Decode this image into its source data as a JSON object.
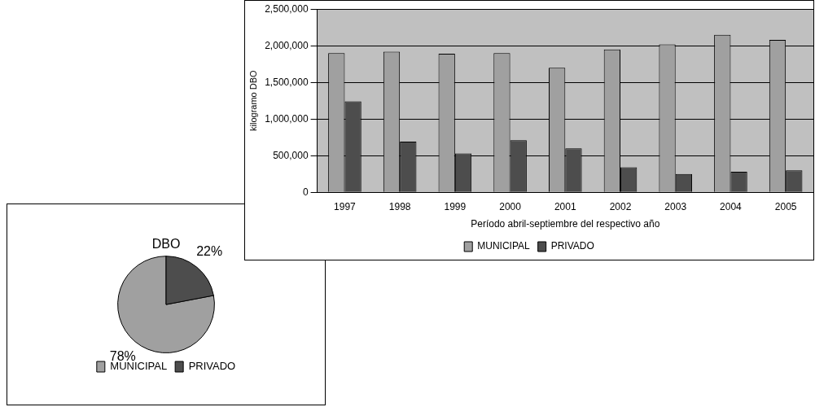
{
  "chart_data": [
    {
      "type": "bar",
      "xlabel": "Período abril-septiembre del respectivo año",
      "ylabel": "kilogramo DBO",
      "categories": [
        "1997",
        "1998",
        "1999",
        "2000",
        "2001",
        "2002",
        "2003",
        "2004",
        "2005"
      ],
      "series": [
        {
          "name": "MUNICIPAL",
          "color": "#a0a0a0",
          "values": [
            1900000,
            1920000,
            1890000,
            1900000,
            1700000,
            1950000,
            2020000,
            2150000,
            2080000
          ]
        },
        {
          "name": "PRIVADO",
          "color": "#4d4d4d",
          "values": [
            1240000,
            690000,
            530000,
            710000,
            600000,
            340000,
            250000,
            280000,
            300000
          ]
        }
      ],
      "ylim": [
        0,
        2500000
      ],
      "yticks": [
        {
          "value": 0,
          "label": "0"
        },
        {
          "value": 500000,
          "label": "500,000"
        },
        {
          "value": 1000000,
          "label": "1,000,000"
        },
        {
          "value": 1500000,
          "label": "1,500,000"
        },
        {
          "value": 2000000,
          "label": "2,000,000"
        },
        {
          "value": 2500000,
          "label": "2,500,000"
        }
      ],
      "grid": "y",
      "legend": "bottom"
    },
    {
      "type": "pie",
      "title": "DBO",
      "categories": [
        "MUNICIPAL",
        "PRIVADO"
      ],
      "values": [
        78,
        22
      ],
      "colors": [
        "#a0a0a0",
        "#4d4d4d"
      ],
      "value_labels": [
        "78%",
        "22%"
      ],
      "legend": "bottom"
    }
  ]
}
